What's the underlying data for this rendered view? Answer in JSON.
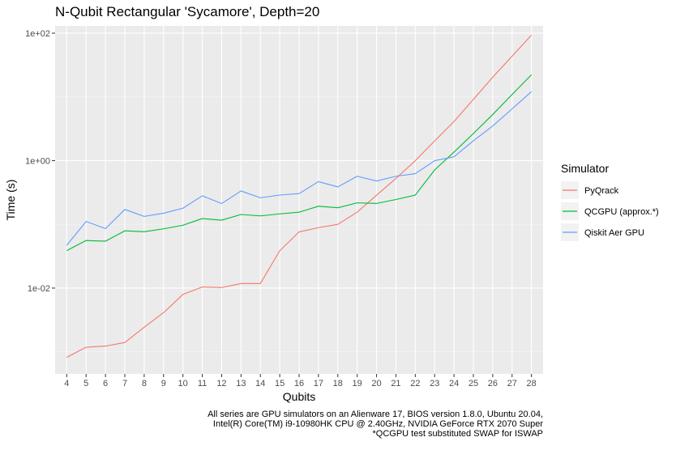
{
  "chart_data": {
    "type": "line",
    "title": "N-Qubit Rectangular 'Sycamore', Depth=20",
    "xlabel": "Qubits",
    "ylabel": "Time (s)",
    "y_scale": "log10",
    "x_categories": [
      4,
      5,
      6,
      7,
      8,
      9,
      10,
      11,
      12,
      13,
      14,
      15,
      16,
      17,
      18,
      19,
      20,
      21,
      22,
      23,
      24,
      25,
      26,
      27,
      28
    ],
    "y_ticks": [
      {
        "value": 0.01,
        "label": "1e-02"
      },
      {
        "value": 1,
        "label": "1e+00"
      },
      {
        "value": 100,
        "label": "1e+02"
      }
    ],
    "ylim": [
      0.00045,
      130
    ],
    "grid": true,
    "legend": {
      "title": "Simulator",
      "position": "right"
    },
    "series": [
      {
        "name": "PyQrack",
        "color": "#F8766D",
        "x": [
          4,
          5,
          6,
          7,
          8,
          9,
          10,
          11,
          12,
          13,
          14,
          15,
          16,
          17,
          18,
          19,
          20,
          21,
          22,
          23,
          24,
          25,
          26,
          27,
          28
        ],
        "values": [
          0.00082,
          0.00118,
          0.00123,
          0.0014,
          0.00243,
          0.00411,
          0.00795,
          0.0104,
          0.0102,
          0.0118,
          0.0118,
          0.0385,
          0.0761,
          0.0888,
          0.1001,
          0.1558,
          0.2868,
          0.5264,
          0.9974,
          2.04,
          4.11,
          9.12,
          20.37,
          43.53,
          93.29
        ]
      },
      {
        "name": "QCGPU (approx.*)",
        "color": "#00BA38",
        "x": [
          4,
          5,
          6,
          7,
          8,
          9,
          10,
          11,
          12,
          13,
          14,
          15,
          16,
          17,
          18,
          19,
          20,
          21,
          22,
          23,
          24,
          25,
          26,
          27,
          28
        ],
        "values": [
          0.0387,
          0.0558,
          0.0545,
          0.0791,
          0.0767,
          0.085,
          0.097,
          0.1232,
          0.1162,
          0.1429,
          0.1357,
          0.146,
          0.1553,
          0.1925,
          0.1821,
          0.2175,
          0.2129,
          0.2454,
          0.2879,
          0.7138,
          1.36,
          2.66,
          5.3,
          10.9,
          22.26
        ]
      },
      {
        "name": "Qiskit Aer GPU",
        "color": "#619CFF",
        "x": [
          4,
          5,
          6,
          7,
          8,
          9,
          10,
          11,
          12,
          13,
          14,
          15,
          16,
          17,
          18,
          19,
          20,
          21,
          22,
          23,
          24,
          25,
          26,
          27,
          28
        ],
        "values": [
          0.047,
          0.1109,
          0.0857,
          0.1713,
          0.1333,
          0.1497,
          0.1793,
          0.2806,
          0.2118,
          0.3341,
          0.2612,
          0.2882,
          0.304,
          0.4682,
          0.3871,
          0.5687,
          0.4782,
          0.5687,
          0.6244,
          0.9974,
          1.15,
          2.05,
          3.49,
          6.49,
          12.1
        ]
      }
    ]
  },
  "caption": {
    "line1": "All series are GPU simulators on an Alienware 17, BIOS version 1.8.0, Ubuntu 20.04,",
    "line2": "Intel(R) Core(TM) i9-10980HK CPU @ 2.40GHz, NVIDIA GeForce RTX 2070 Super",
    "line3": "*QCGPU test substituted SWAP for ISWAP"
  },
  "colors": {
    "panel_background": "#EBEBEB",
    "grid_major": "#FFFFFF",
    "grid_minor": "#F5F5F5",
    "axis_text": "#4D4D4D",
    "tick": "#333333",
    "legend_key_background": "#F2F2F2"
  }
}
